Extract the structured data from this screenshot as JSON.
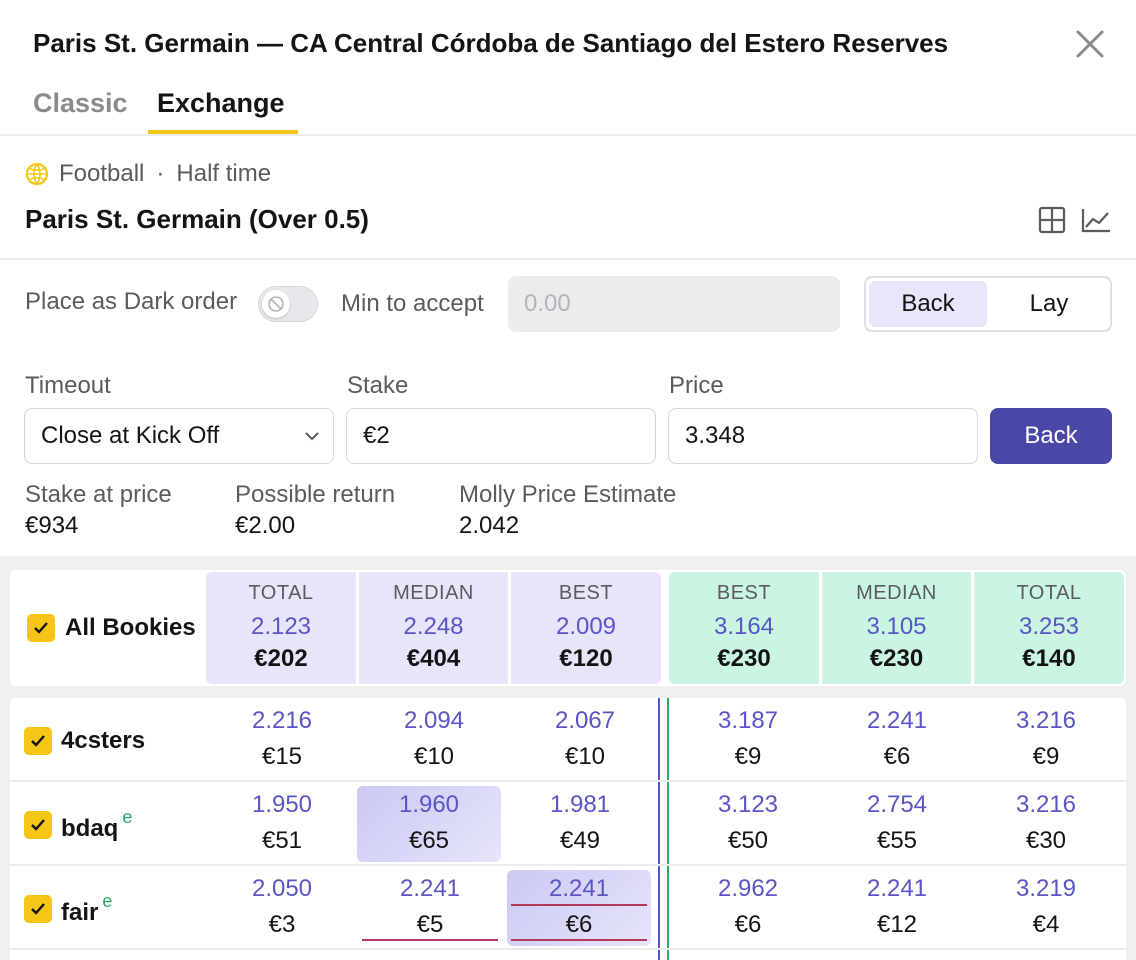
{
  "header": {
    "title": "Paris St. Germain — CA Central Córdoba de Santiago del Estero Reserves",
    "tabs": [
      "Classic",
      "Exchange"
    ],
    "active_tab": "Exchange"
  },
  "market": {
    "sport": "Football",
    "separator": "·",
    "period": "Half time",
    "selection": "Paris St. Germain (Over 0.5)"
  },
  "order": {
    "dark_order_label": "Place as Dark order",
    "dark_order_enabled": false,
    "min_accept_label": "Min to accept",
    "min_accept_placeholder": "0.00",
    "side_options": [
      "Back",
      "Lay"
    ],
    "side_selected": "Back",
    "timeout_label": "Timeout",
    "timeout_value": "Close at Kick Off",
    "stake_label": "Stake",
    "stake_value": "€2",
    "price_label": "Price",
    "price_value": "3.348",
    "submit_label": "Back"
  },
  "stats": {
    "stake_at_price_label": "Stake at price",
    "stake_at_price_value": "€934",
    "possible_return_label": "Possible return",
    "possible_return_value": "€2.00",
    "molly_label": "Molly Price Estimate",
    "molly_value": "2.042"
  },
  "table": {
    "all_label": "All Bookies",
    "columns": [
      "TOTAL",
      "MEDIAN",
      "BEST",
      "BEST",
      "MEDIAN",
      "TOTAL"
    ],
    "summary": [
      {
        "price": "2.123",
        "stake": "€202"
      },
      {
        "price": "2.248",
        "stake": "€404"
      },
      {
        "price": "2.009",
        "stake": "€120"
      },
      {
        "price": "3.164",
        "stake": "€230"
      },
      {
        "price": "3.105",
        "stake": "€230"
      },
      {
        "price": "3.253",
        "stake": "€140"
      }
    ],
    "rows": [
      {
        "name": "4csters",
        "tag": "",
        "cells": [
          {
            "price": "2.216",
            "stake": "€15"
          },
          {
            "price": "2.094",
            "stake": "€10"
          },
          {
            "price": "2.067",
            "stake": "€10"
          },
          {
            "price": "3.187",
            "stake": "€9"
          },
          {
            "price": "2.241",
            "stake": "€6"
          },
          {
            "price": "3.216",
            "stake": "€9"
          }
        ]
      },
      {
        "name": "bdaq",
        "tag": "e",
        "cells": [
          {
            "price": "1.950",
            "stake": "€51"
          },
          {
            "price": "1.960",
            "stake": "€65"
          },
          {
            "price": "1.981",
            "stake": "€49"
          },
          {
            "price": "3.123",
            "stake": "€50"
          },
          {
            "price": "2.754",
            "stake": "€55"
          },
          {
            "price": "3.216",
            "stake": "€30"
          }
        ]
      },
      {
        "name": "fair",
        "tag": "e",
        "cells": [
          {
            "price": "2.050",
            "stake": "€3"
          },
          {
            "price": "2.241",
            "stake": "€5"
          },
          {
            "price": "2.241",
            "stake": "€6"
          },
          {
            "price": "2.962",
            "stake": "€6"
          },
          {
            "price": "2.241",
            "stake": "€12"
          },
          {
            "price": "3.219",
            "stake": "€4"
          }
        ]
      }
    ]
  },
  "colors": {
    "accent_yellow": "#f5c518",
    "primary_purple": "#4b47a6",
    "price_text": "#5a55c4",
    "back_header_bg": "#e6e5fa",
    "lay_header_bg": "#c9f5e2"
  }
}
